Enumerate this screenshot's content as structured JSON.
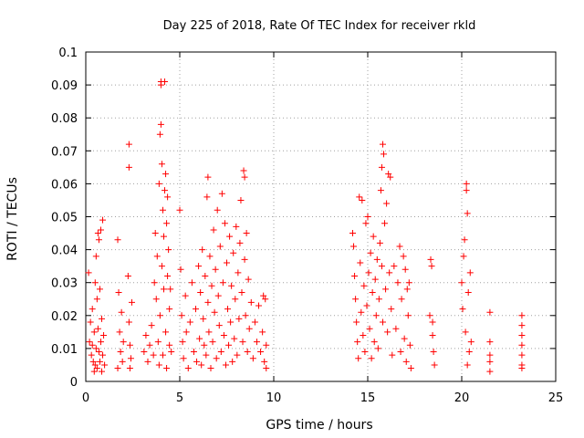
{
  "chart_data": {
    "type": "scatter",
    "title": "Day 225 of 2018, Rate Of TEC Index for receiver rkld",
    "xlabel": "GPS time / hours",
    "ylabel": "ROTI / TECUs",
    "xlim": [
      0,
      25
    ],
    "ylim": [
      0,
      0.1
    ],
    "x_ticks": [
      0,
      5,
      10,
      15,
      20,
      25
    ],
    "x_tick_labels": [
      "0",
      "5",
      "10",
      "15",
      "20",
      "25"
    ],
    "y_ticks": [
      0,
      0.01,
      0.02,
      0.03,
      0.04,
      0.05,
      0.06,
      0.07,
      0.08,
      0.09,
      0.1
    ],
    "y_tick_labels": [
      "0",
      "0.01",
      "0.02",
      "0.03",
      "0.04",
      "0.05",
      "0.06",
      "0.07",
      "0.08",
      "0.09",
      "0.1"
    ],
    "grid": true,
    "marker": "plus",
    "color": "#ff0000",
    "series": [
      {
        "points": [
          [
            0.15,
            0.033
          ],
          [
            0.2,
            0.012
          ],
          [
            0.25,
            0.018
          ],
          [
            0.3,
            0.008
          ],
          [
            0.35,
            0.022
          ],
          [
            0.4,
            0.006
          ],
          [
            0.45,
            0.015
          ],
          [
            0.5,
            0.03
          ],
          [
            0.5,
            0.005
          ],
          [
            0.55,
            0.038
          ],
          [
            0.55,
            0.01
          ],
          [
            0.6,
            0.025
          ],
          [
            0.6,
            0.004
          ],
          [
            0.65,
            0.045
          ],
          [
            0.65,
            0.016
          ],
          [
            0.7,
            0.043
          ],
          [
            0.7,
            0.009
          ],
          [
            0.75,
            0.028
          ],
          [
            0.75,
            0.006
          ],
          [
            0.8,
            0.046
          ],
          [
            0.8,
            0.012
          ],
          [
            0.85,
            0.019
          ],
          [
            0.85,
            0.003
          ],
          [
            0.9,
            0.049
          ],
          [
            0.9,
            0.008
          ],
          [
            0.95,
            0.014
          ],
          [
            1.0,
            0.005
          ],
          [
            0.45,
            0.003
          ],
          [
            0.35,
            0.011
          ],
          [
            1.7,
            0.043
          ],
          [
            1.75,
            0.027
          ],
          [
            1.8,
            0.015
          ],
          [
            1.85,
            0.009
          ],
          [
            1.9,
            0.021
          ],
          [
            1.95,
            0.006
          ],
          [
            1.7,
            0.004
          ],
          [
            2.0,
            0.012
          ],
          [
            2.3,
            0.072
          ],
          [
            2.3,
            0.065
          ],
          [
            2.25,
            0.032
          ],
          [
            2.3,
            0.018
          ],
          [
            2.35,
            0.011
          ],
          [
            2.4,
            0.007
          ],
          [
            2.45,
            0.024
          ],
          [
            2.35,
            0.004
          ],
          [
            3.1,
            0.009
          ],
          [
            3.2,
            0.014
          ],
          [
            3.3,
            0.006
          ],
          [
            3.4,
            0.011
          ],
          [
            3.5,
            0.017
          ],
          [
            3.6,
            0.008
          ],
          [
            3.65,
            0.03
          ],
          [
            3.7,
            0.045
          ],
          [
            3.75,
            0.025
          ],
          [
            3.8,
            0.038
          ],
          [
            3.85,
            0.012
          ],
          [
            3.9,
            0.06
          ],
          [
            3.9,
            0.005
          ],
          [
            3.95,
            0.075
          ],
          [
            3.95,
            0.02
          ],
          [
            4.0,
            0.09
          ],
          [
            4.0,
            0.091
          ],
          [
            4.0,
            0.078
          ],
          [
            4.05,
            0.066
          ],
          [
            4.05,
            0.035
          ],
          [
            4.1,
            0.052
          ],
          [
            4.1,
            0.008
          ],
          [
            4.15,
            0.044
          ],
          [
            4.15,
            0.028
          ],
          [
            4.2,
            0.091
          ],
          [
            4.2,
            0.058
          ],
          [
            4.25,
            0.063
          ],
          [
            4.25,
            0.015
          ],
          [
            4.3,
            0.048
          ],
          [
            4.3,
            0.004
          ],
          [
            4.35,
            0.056
          ],
          [
            4.35,
            0.032
          ],
          [
            4.4,
            0.04
          ],
          [
            4.45,
            0.022
          ],
          [
            4.45,
            0.011
          ],
          [
            4.5,
            0.028
          ],
          [
            4.55,
            0.009
          ],
          [
            5.0,
            0.052
          ],
          [
            5.05,
            0.034
          ],
          [
            5.1,
            0.02
          ],
          [
            5.15,
            0.012
          ],
          [
            5.2,
            0.007
          ],
          [
            5.3,
            0.026
          ],
          [
            5.35,
            0.015
          ],
          [
            5.45,
            0.004
          ],
          [
            5.55,
            0.018
          ],
          [
            5.65,
            0.03
          ],
          [
            5.75,
            0.009
          ],
          [
            5.85,
            0.022
          ],
          [
            5.9,
            0.006
          ],
          [
            6.0,
            0.035
          ],
          [
            6.05,
            0.013
          ],
          [
            6.1,
            0.027
          ],
          [
            6.15,
            0.005
          ],
          [
            6.2,
            0.04
          ],
          [
            6.25,
            0.019
          ],
          [
            6.3,
            0.011
          ],
          [
            6.35,
            0.032
          ],
          [
            6.4,
            0.008
          ],
          [
            6.45,
            0.056
          ],
          [
            6.5,
            0.062
          ],
          [
            6.5,
            0.024
          ],
          [
            6.55,
            0.015
          ],
          [
            6.6,
            0.038
          ],
          [
            6.65,
            0.004
          ],
          [
            6.7,
            0.029
          ],
          [
            6.75,
            0.012
          ],
          [
            6.8,
            0.046
          ],
          [
            6.85,
            0.021
          ],
          [
            6.9,
            0.034
          ],
          [
            6.95,
            0.007
          ],
          [
            7.0,
            0.052
          ],
          [
            7.05,
            0.026
          ],
          [
            7.1,
            0.017
          ],
          [
            7.15,
            0.041
          ],
          [
            7.2,
            0.009
          ],
          [
            7.25,
            0.057
          ],
          [
            7.3,
            0.03
          ],
          [
            7.35,
            0.014
          ],
          [
            7.4,
            0.048
          ],
          [
            7.45,
            0.005
          ],
          [
            7.5,
            0.036
          ],
          [
            7.55,
            0.022
          ],
          [
            7.6,
            0.011
          ],
          [
            7.65,
            0.044
          ],
          [
            7.7,
            0.018
          ],
          [
            7.75,
            0.029
          ],
          [
            7.8,
            0.006
          ],
          [
            7.85,
            0.039
          ],
          [
            7.9,
            0.013
          ],
          [
            7.95,
            0.025
          ],
          [
            8.0,
            0.047
          ],
          [
            8.05,
            0.008
          ],
          [
            8.1,
            0.033
          ],
          [
            8.15,
            0.019
          ],
          [
            8.2,
            0.042
          ],
          [
            8.25,
            0.055
          ],
          [
            8.3,
            0.027
          ],
          [
            8.35,
            0.012
          ],
          [
            8.4,
            0.064
          ],
          [
            8.45,
            0.062
          ],
          [
            8.45,
            0.037
          ],
          [
            8.5,
            0.02
          ],
          [
            8.55,
            0.045
          ],
          [
            8.6,
            0.009
          ],
          [
            8.65,
            0.031
          ],
          [
            8.7,
            0.016
          ],
          [
            8.8,
            0.024
          ],
          [
            8.9,
            0.007
          ],
          [
            9.0,
            0.018
          ],
          [
            9.1,
            0.012
          ],
          [
            9.2,
            0.023
          ],
          [
            9.3,
            0.009
          ],
          [
            9.4,
            0.015
          ],
          [
            9.45,
            0.026
          ],
          [
            9.5,
            0.006
          ],
          [
            9.55,
            0.025
          ],
          [
            9.6,
            0.011
          ],
          [
            9.6,
            0.004
          ],
          [
            14.2,
            0.045
          ],
          [
            14.25,
            0.041
          ],
          [
            14.3,
            0.032
          ],
          [
            14.35,
            0.025
          ],
          [
            14.4,
            0.018
          ],
          [
            14.45,
            0.012
          ],
          [
            14.5,
            0.007
          ],
          [
            14.55,
            0.056
          ],
          [
            14.6,
            0.036
          ],
          [
            14.65,
            0.021
          ],
          [
            14.7,
            0.055
          ],
          [
            14.75,
            0.014
          ],
          [
            14.8,
            0.029
          ],
          [
            14.85,
            0.009
          ],
          [
            14.9,
            0.048
          ],
          [
            14.95,
            0.023
          ],
          [
            15.0,
            0.05
          ],
          [
            15.05,
            0.033
          ],
          [
            15.1,
            0.016
          ],
          [
            15.15,
            0.039
          ],
          [
            15.2,
            0.007
          ],
          [
            15.25,
            0.027
          ],
          [
            15.3,
            0.044
          ],
          [
            15.35,
            0.012
          ],
          [
            15.4,
            0.031
          ],
          [
            15.45,
            0.02
          ],
          [
            15.5,
            0.037
          ],
          [
            15.55,
            0.01
          ],
          [
            15.6,
            0.025
          ],
          [
            15.65,
            0.042
          ],
          [
            15.7,
            0.058
          ],
          [
            15.75,
            0.065
          ],
          [
            15.75,
            0.035
          ],
          [
            15.8,
            0.072
          ],
          [
            15.8,
            0.018
          ],
          [
            15.85,
            0.069
          ],
          [
            15.9,
            0.048
          ],
          [
            15.95,
            0.028
          ],
          [
            16.0,
            0.054
          ],
          [
            16.05,
            0.015
          ],
          [
            16.1,
            0.063
          ],
          [
            16.15,
            0.033
          ],
          [
            16.2,
            0.062
          ],
          [
            16.25,
            0.022
          ],
          [
            16.3,
            0.008
          ],
          [
            16.4,
            0.035
          ],
          [
            16.5,
            0.016
          ],
          [
            16.6,
            0.03
          ],
          [
            16.7,
            0.041
          ],
          [
            16.75,
            0.009
          ],
          [
            16.8,
            0.025
          ],
          [
            16.9,
            0.038
          ],
          [
            16.95,
            0.013
          ],
          [
            17.0,
            0.034
          ],
          [
            17.05,
            0.006
          ],
          [
            17.1,
            0.028
          ],
          [
            17.15,
            0.02
          ],
          [
            17.2,
            0.03
          ],
          [
            17.25,
            0.011
          ],
          [
            17.3,
            0.004
          ],
          [
            18.3,
            0.02
          ],
          [
            18.35,
            0.037
          ],
          [
            18.4,
            0.035
          ],
          [
            18.45,
            0.014
          ],
          [
            18.5,
            0.009
          ],
          [
            18.55,
            0.005
          ],
          [
            18.45,
            0.018
          ],
          [
            20.0,
            0.03
          ],
          [
            20.05,
            0.022
          ],
          [
            20.1,
            0.038
          ],
          [
            20.15,
            0.043
          ],
          [
            20.2,
            0.015
          ],
          [
            20.25,
            0.06
          ],
          [
            20.25,
            0.058
          ],
          [
            20.3,
            0.051
          ],
          [
            20.35,
            0.027
          ],
          [
            20.4,
            0.009
          ],
          [
            20.45,
            0.033
          ],
          [
            20.5,
            0.012
          ],
          [
            20.3,
            0.005
          ],
          [
            21.5,
            0.021
          ],
          [
            21.5,
            0.012
          ],
          [
            21.5,
            0.008
          ],
          [
            21.5,
            0.003
          ],
          [
            21.5,
            0.006
          ],
          [
            23.2,
            0.02
          ],
          [
            23.2,
            0.017
          ],
          [
            23.2,
            0.014
          ],
          [
            23.2,
            0.011
          ],
          [
            23.2,
            0.008
          ],
          [
            23.2,
            0.005
          ],
          [
            23.2,
            0.004
          ]
        ]
      }
    ]
  }
}
